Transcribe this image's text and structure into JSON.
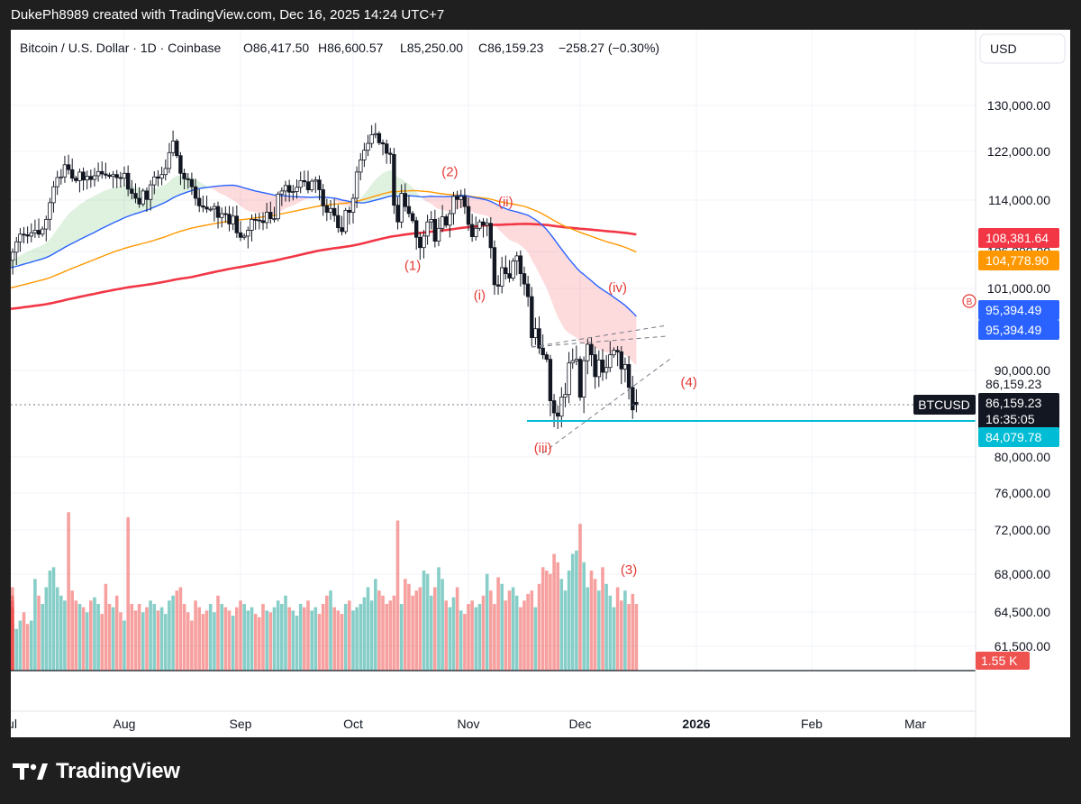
{
  "caption": "DukePh8989 created with TradingView.com, Dec 16, 2025 14:24 UTC+7",
  "brand": {
    "name": "TradingView",
    "logo_text": "17",
    "logo_icon": "tradingview-logo-icon"
  },
  "chart_data": {
    "type": "candlestick",
    "symbol": "BTCUSD",
    "currency_button": "USD",
    "header": {
      "title": "Bitcoin / U.S. Dollar · 1D · Coinbase",
      "open": "O86,417.50",
      "high": "H86,600.57",
      "low": "L85,250.00",
      "close": "C86,159.23",
      "change": "−258.27 (−0.30%)"
    },
    "x_ticks": [
      "Jul",
      "Aug",
      "Sep",
      "Oct",
      "Nov",
      "Dec",
      "2026",
      "Feb",
      "Mar"
    ],
    "y_ticks": [
      "130,000.00",
      "122,000.00",
      "114,000.00",
      "106,000.00",
      "101,000.00",
      "90,000.00",
      "80,000.00",
      "76,000.00",
      "72,000.00",
      "68,000.00",
      "64,500.00",
      "61,500.00"
    ],
    "y_tick_values": [
      130000,
      122000,
      114000,
      106000,
      101000,
      90000,
      80000,
      76000,
      72000,
      68000,
      64500,
      61500
    ],
    "price_tags": [
      {
        "label": "108,381.64",
        "value": 108381.64,
        "color": "#f23645"
      },
      {
        "label": "104,778.90",
        "value": 104778.9,
        "color": "#ff9800"
      },
      {
        "label": "95,394.49",
        "value": 95394.49,
        "color": "#2962ff"
      },
      {
        "label": "95,394.49",
        "value": 95394.49,
        "color": "#2962ff"
      },
      {
        "label": "86,159.23",
        "value": 86159.23,
        "color": "#ffffff"
      },
      {
        "label": "86,159.23",
        "value": 86159.23,
        "color": "#131722"
      },
      {
        "label": "16:35:05",
        "value": 86159.23,
        "color": "#131722"
      },
      {
        "label": "84,079.78",
        "value": 84079.78,
        "color": "#00bcd4"
      }
    ],
    "volume_tag": "1.55 K",
    "symbol_tag": "BTCUSD",
    "last_price": 86159.23,
    "support_level": 84079.78,
    "colors": {
      "up": "#26a69a",
      "down": "#ef5350",
      "ma_blue": "#2962ff",
      "ma_orange": "#ff9800",
      "ma_red": "#f23645",
      "support": "#00bcd4",
      "annotation": "#e53935"
    },
    "annotations": [
      {
        "label": "(1)",
        "date": "2025-10-17",
        "price": 103500
      },
      {
        "label": "(2)",
        "date": "2025-10-27",
        "price": 117900
      },
      {
        "label": "(i)",
        "date": "2025-11-04",
        "price": 99500
      },
      {
        "label": "(ii)",
        "date": "2025-11-11",
        "price": 113000
      },
      {
        "label": "(iii)",
        "date": "2025-11-21",
        "price": 80500
      },
      {
        "label": "(iv)",
        "date": "2025-12-11",
        "price": 100500
      },
      {
        "label": "(4)",
        "date": "2025-12-30",
        "price": 88200
      },
      {
        "label": "(3)",
        "date": "2025-12-14",
        "price": 68000
      }
    ],
    "b_marker": "B",
    "closes": [
      104800,
      105900,
      107500,
      108700,
      108600,
      108400,
      108900,
      109300,
      108700,
      109500,
      111000,
      113600,
      116200,
      117700,
      117800,
      119800,
      119000,
      117600,
      117200,
      118600,
      117300,
      117900,
      117400,
      118000,
      118700,
      118300,
      118100,
      117900,
      118200,
      117700,
      117600,
      118400,
      115800,
      115100,
      114300,
      113400,
      115500,
      114100,
      116500,
      117800,
      117600,
      118200,
      119200,
      121800,
      123800,
      121300,
      118400,
      117500,
      117400,
      116200,
      114300,
      113100,
      112900,
      112600,
      112600,
      113000,
      111300,
      111900,
      111800,
      110300,
      111500,
      108900,
      108200,
      108400,
      109300,
      111000,
      110900,
      110800,
      110500,
      112100,
      111100,
      111100,
      115000,
      115500,
      116400,
      115300,
      115400,
      116100,
      117200,
      117000,
      115700,
      117100,
      117300,
      115700,
      113100,
      112100,
      112700,
      111600,
      109700,
      109100,
      112400,
      112100,
      114300,
      118600,
      120600,
      122200,
      123400,
      124900,
      125100,
      123500,
      123300,
      121700,
      121500,
      113200,
      110600,
      115100,
      113000,
      111900,
      110800,
      108200,
      106600,
      108400,
      110600,
      111000,
      107600,
      109600,
      111400,
      110100,
      111900,
      114600,
      114100,
      114600,
      113000,
      110200,
      108300,
      109600,
      110600,
      110100,
      110400,
      106600,
      101500,
      101300,
      103800,
      103000,
      102400,
      104700,
      105400,
      103000,
      101600,
      99900,
      94400,
      95600,
      93000,
      92100,
      91500,
      86600,
      85100,
      84700,
      87000,
      87300,
      91000,
      91300,
      91500,
      87000,
      91300,
      93500,
      92100,
      89300,
      91400,
      89800,
      90400,
      92100,
      92700,
      92500,
      90200,
      90800,
      88100,
      85500,
      86159
    ],
    "opens": [
      104000,
      104800,
      105900,
      107500,
      108700,
      108600,
      108400,
      108900,
      109300,
      108700,
      109500,
      111000,
      113600,
      116200,
      117700,
      117800,
      119800,
      119000,
      117600,
      117200,
      118600,
      117300,
      117900,
      117400,
      118000,
      118700,
      118300,
      118100,
      117900,
      118200,
      117700,
      117600,
      118400,
      115800,
      115100,
      114300,
      113400,
      115500,
      114100,
      116500,
      117800,
      117600,
      118200,
      119200,
      121800,
      123800,
      121300,
      118400,
      117500,
      117400,
      116200,
      114300,
      113100,
      112900,
      112600,
      112600,
      113000,
      111300,
      111900,
      111800,
      110300,
      111500,
      108900,
      108200,
      108400,
      109300,
      111000,
      110900,
      110800,
      110500,
      112100,
      111100,
      111100,
      115000,
      115500,
      116400,
      115300,
      115400,
      116100,
      117200,
      117000,
      115700,
      117100,
      117300,
      115700,
      113100,
      112100,
      112700,
      111600,
      109700,
      109100,
      112400,
      112100,
      114300,
      118600,
      120600,
      122200,
      123400,
      124900,
      125100,
      123500,
      123300,
      121700,
      121500,
      113200,
      110600,
      115100,
      113000,
      111900,
      110800,
      108200,
      106600,
      108400,
      110600,
      111000,
      107600,
      109600,
      111400,
      110100,
      111900,
      114600,
      114100,
      114600,
      113000,
      110200,
      108300,
      109600,
      110600,
      110100,
      110400,
      106600,
      101500,
      101300,
      103800,
      103000,
      102400,
      104700,
      105400,
      103000,
      101600,
      99900,
      94400,
      95600,
      93000,
      92100,
      91500,
      86600,
      85100,
      84700,
      87000,
      87300,
      91000,
      91300,
      91500,
      87000,
      91300,
      93500,
      92100,
      89300,
      91400,
      89800,
      90400,
      92100,
      92700,
      92500,
      90200,
      90800,
      88100,
      86417.5
    ],
    "volume": [
      32,
      28,
      25,
      30,
      35,
      28,
      30,
      55,
      45,
      40,
      50,
      60,
      62,
      50,
      45,
      42,
      95,
      48,
      42,
      40,
      38,
      35,
      42,
      44,
      40,
      34,
      52,
      40,
      38,
      45,
      35,
      30,
      92,
      40,
      36,
      40,
      35,
      38,
      42,
      40,
      36,
      38,
      34,
      42,
      45,
      48,
      50,
      40,
      35,
      30,
      42,
      38,
      34,
      36,
      40,
      35,
      45,
      40,
      38,
      36,
      33,
      38,
      42,
      40,
      36,
      38,
      34,
      32,
      40,
      36,
      35,
      38,
      42,
      40,
      45,
      38,
      36,
      33,
      40,
      38,
      42,
      36,
      38,
      34,
      40,
      45,
      48,
      38,
      36,
      34,
      40,
      42,
      36,
      38,
      40,
      44,
      50,
      42,
      55,
      48,
      45,
      40,
      42,
      45,
      90,
      40,
      55,
      52,
      45,
      48,
      50,
      60,
      58,
      45,
      50,
      62,
      55,
      42,
      38,
      44,
      50,
      36,
      34,
      40,
      42,
      38,
      40,
      45,
      58,
      48,
      40,
      56,
      52,
      42,
      48,
      50,
      45,
      38,
      42,
      46,
      48,
      38,
      52,
      62,
      60,
      58,
      70,
      65,
      55,
      48,
      60,
      70,
      72,
      88,
      65,
      50,
      60,
      55,
      48,
      62,
      52,
      45,
      38,
      50,
      42,
      48,
      40,
      46,
      40,
      38,
      50,
      45,
      36,
      32,
      42,
      38,
      8
    ]
  }
}
